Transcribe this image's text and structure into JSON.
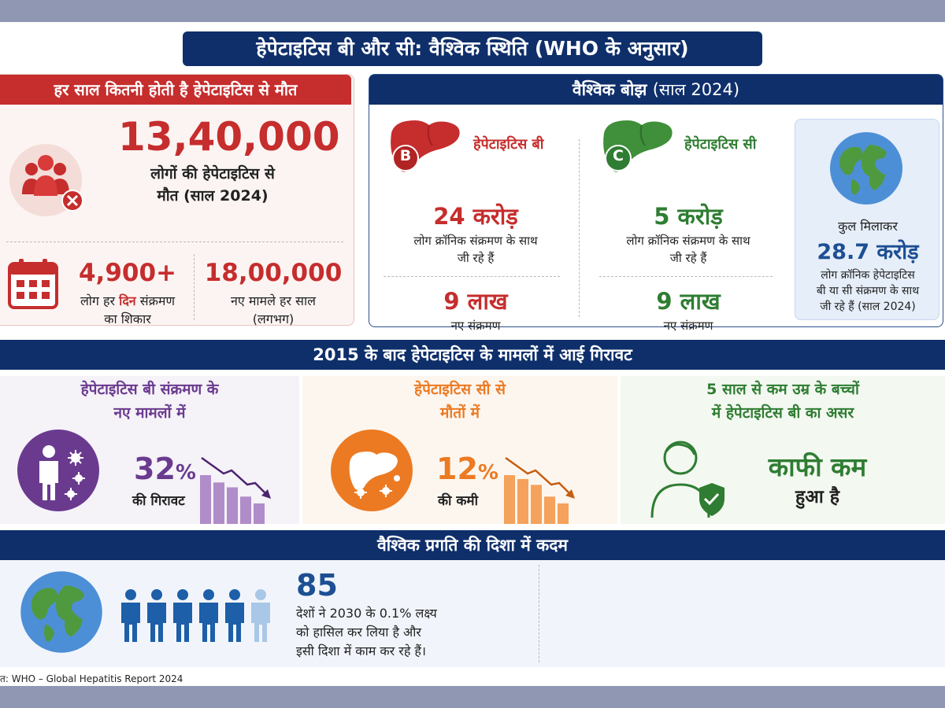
{
  "title": "हेपेटाइटिस बी और सी: वैश्विक स्थिति (WHO के अनुसार)",
  "deaths": {
    "header": "हर साल कितनी होती है हेपेटाइटिस से मौत",
    "total_value": "13,40,000",
    "total_line1": "लोगों की हेपेटाइटिस से",
    "total_line2": "मौत (साल 2024)",
    "daily_value": "4,900+",
    "daily_text_pre": "लोग हर",
    "daily_text_em": "दिन",
    "daily_text_post": "संक्रमण",
    "daily_line2": "का शिकार",
    "yearly_value": "18,00,000",
    "yearly_line1": "नए मामले हर साल",
    "yearly_line2": "(लगभग)"
  },
  "burden": {
    "header_bold": "वैश्विक बोझ",
    "header_light": "(साल 2024)",
    "hep_b": {
      "letter": "B",
      "name": "हेपेटाइटिस बी",
      "chronic_value": "24 करोड़",
      "chronic_line1": "लोग क्रॉनिक संक्रमण के साथ",
      "chronic_line2": "जी रहे हैं",
      "new_value": "9 लाख",
      "new_label": "नए संक्रमण"
    },
    "hep_c": {
      "letter": "C",
      "name": "हेपेटाइटिस सी",
      "chronic_value": "5 करोड़",
      "chronic_line1": "लोग क्रॉनिक संक्रमण के साथ",
      "chronic_line2": "जी रहे हैं",
      "new_value": "9 लाख",
      "new_label": "नए संक्रमण"
    },
    "total": {
      "label": "कुल मिलाकर",
      "value": "28.7 करोड़",
      "line1": "लोग क्रॉनिक हेपेटाइटिस",
      "line2": "बी या सी संक्रमण के साथ",
      "line3": "जी रहे हैं (साल 2024)"
    }
  },
  "decline": {
    "header": "2015 के बाद हेपेटाइटिस के मामलों में आई गिरावट",
    "panel1": {
      "title_line1": "हेपेटाइटिस बी संक्रमण के",
      "title_line2": "नए मामलों में",
      "value": "32",
      "unit": "%",
      "label": "की गिरावट",
      "bars": [
        1.0,
        0.85,
        0.75,
        0.56,
        0.42
      ]
    },
    "panel2": {
      "title_line1": "हेपेटाइटिस सी से",
      "title_line2": "मौतों में",
      "value": "12",
      "unit": "%",
      "label": "की कमी",
      "bars": [
        1.0,
        0.92,
        0.8,
        0.56,
        0.42
      ]
    },
    "panel3": {
      "title_line1": "5 साल से कम उम्र के बच्चों",
      "title_line2": "में हेपेटाइटिस बी का असर",
      "value": "काफी कम",
      "label": "हुआ है"
    }
  },
  "progress": {
    "header": "वैश्विक प्रगति की दिशा में कदम",
    "value": "85",
    "line1": "देशों ने 2030 के 0.1% लक्ष्य",
    "line2": "को हासिल कर लिया है और",
    "line3": "इसी दिशा में काम कर रहे हैं।",
    "people_filled": 5,
    "people_total": 6
  },
  "source": "त: WHO – Global Hepatitis Report 2024",
  "colors": {
    "navy": "#0f2f6b",
    "red": "#c62d2d",
    "green": "#2f7d32",
    "purple": "#6a3a8f",
    "orange": "#ec7a22",
    "blue": "#1d4f93"
  },
  "icons": [
    "people-cross-icon",
    "calendar-icon",
    "liver-b-icon",
    "liver-c-icon",
    "globe-icon",
    "person-virus-icon",
    "liver-virus-icon",
    "child-shield-icon",
    "people-row-icon",
    "declining-bars-icon"
  ]
}
